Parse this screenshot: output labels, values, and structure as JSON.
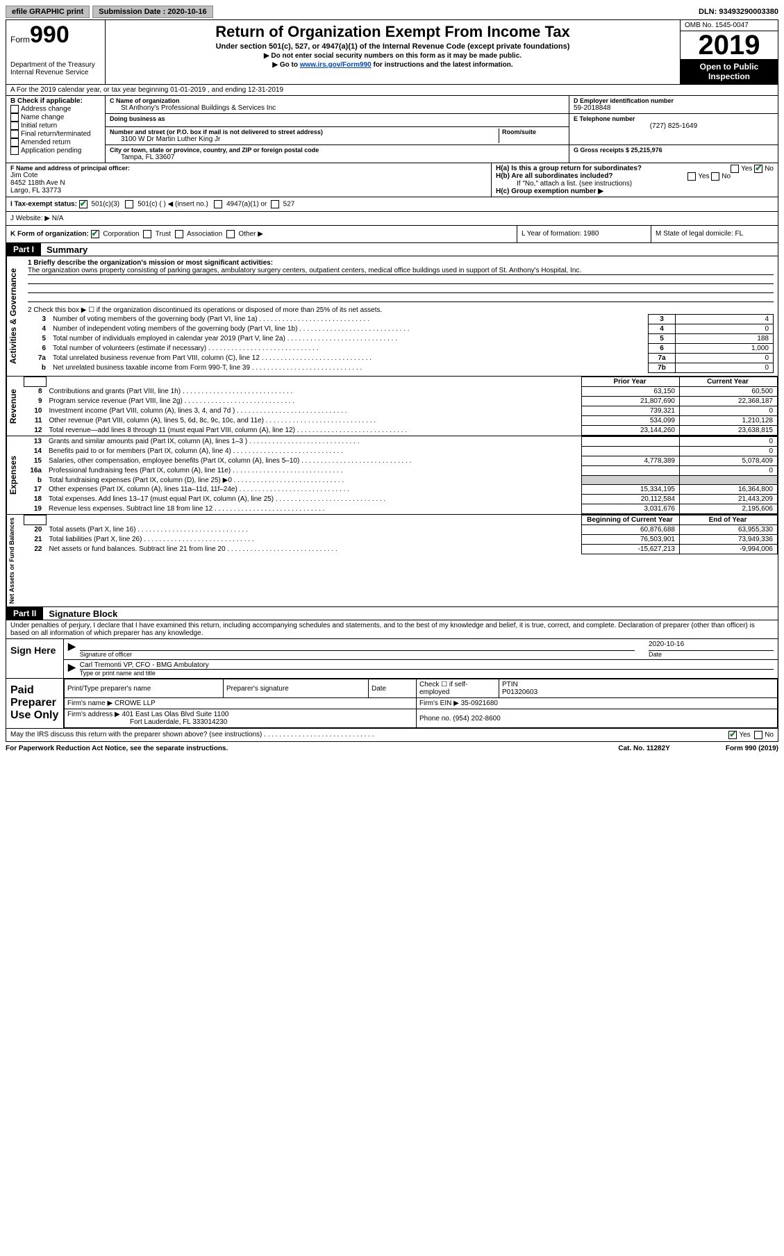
{
  "topbar": {
    "efile": "efile GRAPHIC print",
    "sub_label": "Submission Date : 2020-10-16",
    "dln": "DLN: 93493290003380"
  },
  "header": {
    "form_word": "Form",
    "form_num": "990",
    "dept": "Department of the Treasury\nInternal Revenue Service",
    "title": "Return of Organization Exempt From Income Tax",
    "subtitle": "Under section 501(c), 527, or 4947(a)(1) of the Internal Revenue Code (except private foundations)",
    "note1": "▶ Do not enter social security numbers on this form as it may be made public.",
    "note2_pre": "▶ Go to ",
    "note2_link": "www.irs.gov/Form990",
    "note2_post": " for instructions and the latest information.",
    "omb": "OMB No. 1545-0047",
    "year": "2019",
    "open": "Open to Public Inspection"
  },
  "lineA": "A For the 2019 calendar year, or tax year beginning 01-01-2019    , and ending 12-31-2019",
  "colB": {
    "label": "B Check if applicable:",
    "opts": [
      "Address change",
      "Name change",
      "Initial return",
      "Final return/terminated",
      "Amended return",
      "Application pending"
    ]
  },
  "colC": {
    "name_label": "C Name of organization",
    "name": "St Anthony's Professional Buildings & Services Inc",
    "dba_label": "Doing business as",
    "addr_label": "Number and street (or P.O. box if mail is not delivered to street address)",
    "room_label": "Room/suite",
    "addr": "3100 W Dr Martin Luther King Jr",
    "city_label": "City or town, state or province, country, and ZIP or foreign postal code",
    "city": "Tampa, FL  33607"
  },
  "colD": {
    "ein_label": "D Employer identification number",
    "ein": "59-2018848",
    "phone_label": "E Telephone number",
    "phone": "(727) 825-1649",
    "gross_label": "G Gross receipts $ 25,215,976"
  },
  "rowF": {
    "label": "F  Name and address of principal officer:",
    "name": "Jim Cote",
    "addr1": "8452 118th Ave N",
    "addr2": "Largo, FL  33773"
  },
  "rowH": {
    "ha": "H(a)  Is this a group return for subordinates?",
    "hb": "H(b)  Are all subordinates included?",
    "hb_note": "If \"No,\" attach a list. (see instructions)",
    "hc": "H(c)  Group exemption number ▶",
    "yes": "Yes",
    "no": "No"
  },
  "rowI": {
    "label": "I  Tax-exempt status:",
    "o1": "501(c)(3)",
    "o2": "501(c) (  ) ◀ (insert no.)",
    "o3": "4947(a)(1) or",
    "o4": "527"
  },
  "rowJ": "J  Website: ▶  N/A",
  "rowK": {
    "label": "K Form of organization:",
    "o1": "Corporation",
    "o2": "Trust",
    "o3": "Association",
    "o4": "Other ▶"
  },
  "rowL": "L Year of formation: 1980",
  "rowM": "M State of legal domicile: FL",
  "part1": {
    "tag": "Part I",
    "title": "Summary"
  },
  "summary": {
    "l1_label": "1  Briefly describe the organization's mission or most significant activities:",
    "l1_text": "The organization owns property consisting of parking garages, ambulatory surgery centers, outpatient centers, medical office buildings used in support of St. Anthony's Hospital, Inc.",
    "l2": "2    Check this box ▶ ☐  if the organization discontinued its operations or disposed of more than 25% of its net assets.",
    "lines_a": [
      {
        "n": "3",
        "t": "Number of voting members of the governing body (Part VI, line 1a)",
        "b": "3",
        "v": "4"
      },
      {
        "n": "4",
        "t": "Number of independent voting members of the governing body (Part VI, line 1b)",
        "b": "4",
        "v": "0"
      },
      {
        "n": "5",
        "t": "Total number of individuals employed in calendar year 2019 (Part V, line 2a)",
        "b": "5",
        "v": "188"
      },
      {
        "n": "6",
        "t": "Total number of volunteers (estimate if necessary)",
        "b": "6",
        "v": "1,000"
      },
      {
        "n": "7a",
        "t": "Total unrelated business revenue from Part VIII, column (C), line 12",
        "b": "7a",
        "v": "0"
      },
      {
        "n": "b",
        "t": "Net unrelated business taxable income from Form 990-T, line 39",
        "b": "7b",
        "v": "0"
      }
    ],
    "hdr_prior": "Prior Year",
    "hdr_curr": "Current Year",
    "revenue": [
      {
        "n": "8",
        "t": "Contributions and grants (Part VIII, line 1h)",
        "p": "63,150",
        "c": "60,500"
      },
      {
        "n": "9",
        "t": "Program service revenue (Part VIII, line 2g)",
        "p": "21,807,690",
        "c": "22,368,187"
      },
      {
        "n": "10",
        "t": "Investment income (Part VIII, column (A), lines 3, 4, and 7d )",
        "p": "739,321",
        "c": "0"
      },
      {
        "n": "11",
        "t": "Other revenue (Part VIII, column (A), lines 5, 6d, 8c, 9c, 10c, and 11e)",
        "p": "534,099",
        "c": "1,210,128"
      },
      {
        "n": "12",
        "t": "Total revenue—add lines 8 through 11 (must equal Part VIII, column (A), line 12)",
        "p": "23,144,260",
        "c": "23,638,815"
      }
    ],
    "expenses": [
      {
        "n": "13",
        "t": "Grants and similar amounts paid (Part IX, column (A), lines 1–3 )",
        "p": "",
        "c": "0"
      },
      {
        "n": "14",
        "t": "Benefits paid to or for members (Part IX, column (A), line 4)",
        "p": "",
        "c": "0"
      },
      {
        "n": "15",
        "t": "Salaries, other compensation, employee benefits (Part IX, column (A), lines 5–10)",
        "p": "4,778,389",
        "c": "5,078,409"
      },
      {
        "n": "16a",
        "t": "Professional fundraising fees (Part IX, column (A), line 11e)",
        "p": "",
        "c": "0"
      },
      {
        "n": "b",
        "t": "Total fundraising expenses (Part IX, column (D), line 25) ▶0",
        "p": "GREY",
        "c": "GREY"
      },
      {
        "n": "17",
        "t": "Other expenses (Part IX, column (A), lines 11a–11d, 11f–24e)",
        "p": "15,334,195",
        "c": "16,364,800"
      },
      {
        "n": "18",
        "t": "Total expenses. Add lines 13–17 (must equal Part IX, column (A), line 25)",
        "p": "20,112,584",
        "c": "21,443,209"
      },
      {
        "n": "19",
        "t": "Revenue less expenses. Subtract line 18 from line 12",
        "p": "3,031,676",
        "c": "2,195,606"
      }
    ],
    "hdr_beg": "Beginning of Current Year",
    "hdr_end": "End of Year",
    "net": [
      {
        "n": "20",
        "t": "Total assets (Part X, line 16)",
        "p": "60,876,688",
        "c": "63,955,330"
      },
      {
        "n": "21",
        "t": "Total liabilities (Part X, line 26)",
        "p": "76,503,901",
        "c": "73,949,336"
      },
      {
        "n": "22",
        "t": "Net assets or fund balances. Subtract line 21 from line 20",
        "p": "-15,627,213",
        "c": "-9,994,006"
      }
    ]
  },
  "part2": {
    "tag": "Part II",
    "title": "Signature Block"
  },
  "penalty": "Under penalties of perjury, I declare that I have examined this return, including accompanying schedules and statements, and to the best of my knowledge and belief, it is true, correct, and complete. Declaration of preparer (other than officer) is based on all information of which preparer has any knowledge.",
  "sign": {
    "here": "Sign Here",
    "sig_label": "Signature of officer",
    "date_label": "Date",
    "date": "2020-10-16",
    "name": "Carl Tremonti VP, CFO - BMG Ambulatory",
    "name_label": "Type or print name and title"
  },
  "paid": {
    "label": "Paid Preparer Use Only",
    "col1": "Print/Type preparer's name",
    "col2": "Preparer's signature",
    "col3": "Date",
    "check_label": "Check ☐ if self-employed",
    "ptin_label": "PTIN",
    "ptin": "P01320603",
    "firm_name_label": "Firm's name    ▶",
    "firm_name": "CROWE LLP",
    "firm_ein_label": "Firm's EIN ▶",
    "firm_ein": "35-0921680",
    "firm_addr_label": "Firm's address ▶",
    "firm_addr1": "401 East Las Olas Blvd Suite 1100",
    "firm_addr2": "Fort Lauderdale, FL  333014230",
    "phone_label": "Phone no.",
    "phone": "(954) 202-8600"
  },
  "discuss": "May the IRS discuss this return with the preparer shown above? (see instructions)",
  "footer": {
    "left": "For Paperwork Reduction Act Notice, see the separate instructions.",
    "mid": "Cat. No. 11282Y",
    "right": "Form 990 (2019)"
  },
  "vlabels": {
    "ag": "Activities & Governance",
    "rev": "Revenue",
    "exp": "Expenses",
    "net": "Net Assets or Fund Balances"
  }
}
